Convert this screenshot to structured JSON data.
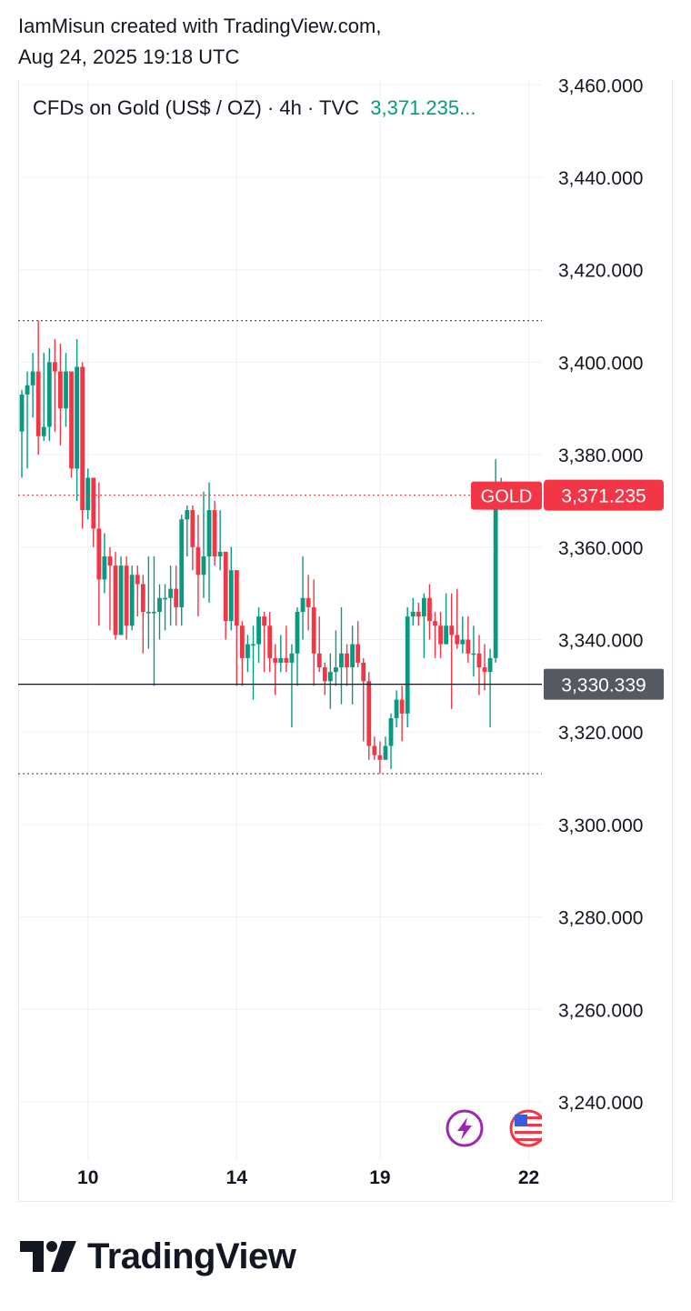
{
  "header": {
    "line1": "IamMisun created with TradingView.com,",
    "line2": "Aug 24, 2025 19:18 UTC"
  },
  "legend": {
    "symbol_text": "CFDs on Gold (US$ / OZ) · 4h · TVC",
    "last_price": "3,371.235..."
  },
  "colors": {
    "up": "#089981",
    "down": "#f23645",
    "grid": "#eef0f3",
    "text": "#131722",
    "crosshair_label": "#555a62"
  },
  "footer": {
    "brand": "TradingView"
  },
  "icons": [
    "lightning-icon",
    "us-flag-icon"
  ],
  "chart_data": {
    "type": "candlestick",
    "symbol": "CFDs on Gold (US$ / OZ)",
    "interval": "4h",
    "exchange": "TVC",
    "ylim": [
      3230,
      3462
    ],
    "y_ticks": [
      3240,
      3260,
      3280,
      3300,
      3320,
      3340,
      3360,
      3380,
      3400,
      3420,
      3440,
      3460
    ],
    "y_tick_labels": [
      "3,240.000",
      "3,260.000",
      "3,280.000",
      "3,300.000",
      "3,320.000",
      "3,340.000",
      "3,360.000",
      "3,380.000",
      "3,400.000",
      "3,420.000",
      "3,440.000",
      "3,460.000"
    ],
    "x_tick_labels": [
      "10",
      "14",
      "19",
      "22"
    ],
    "x_tick_bar_index": [
      12,
      39,
      65,
      92
    ],
    "last_price": 3371.235,
    "last_price_label": "3,371.235",
    "symbol_badge": "GOLD",
    "crosshair_price": 3330.339,
    "crosshair_label": "3,330.339",
    "range_high": 3409,
    "range_low": 3311,
    "grid": true,
    "candles": [
      [
        3385,
        3394,
        3375,
        3393
      ],
      [
        3393,
        3398,
        3377,
        3395
      ],
      [
        3395,
        3402,
        3388,
        3398
      ],
      [
        3398,
        3409,
        3380,
        3384
      ],
      [
        3384,
        3402,
        3383,
        3386
      ],
      [
        3386,
        3403,
        3383,
        3400
      ],
      [
        3400,
        3405,
        3385,
        3398
      ],
      [
        3398,
        3404,
        3382,
        3390
      ],
      [
        3390,
        3402,
        3386,
        3398
      ],
      [
        3398,
        3398,
        3375,
        3377
      ],
      [
        3377,
        3405,
        3370,
        3399
      ],
      [
        3399,
        3400,
        3364,
        3368
      ],
      [
        3368,
        3377,
        3366,
        3375
      ],
      [
        3375,
        3375,
        3360,
        3364
      ],
      [
        3364,
        3374,
        3343,
        3353
      ],
      [
        3353,
        3363,
        3350,
        3358
      ],
      [
        3358,
        3360,
        3342,
        3356
      ],
      [
        3356,
        3359,
        3340,
        3341
      ],
      [
        3341,
        3358,
        3341,
        3356
      ],
      [
        3356,
        3358,
        3340,
        3343
      ],
      [
        3343,
        3356,
        3342,
        3354
      ],
      [
        3354,
        3356,
        3345,
        3352
      ],
      [
        3352,
        3354,
        3337,
        3346
      ],
      [
        3346,
        3358,
        3338,
        3346
      ],
      [
        3346,
        3358,
        3330,
        3346
      ],
      [
        3346,
        3352,
        3340,
        3349
      ],
      [
        3349,
        3352,
        3342,
        3349
      ],
      [
        3349,
        3356,
        3343,
        3351
      ],
      [
        3351,
        3356,
        3343,
        3347
      ],
      [
        3347,
        3367,
        3343,
        3366
      ],
      [
        3366,
        3369,
        3358,
        3368
      ],
      [
        3368,
        3369,
        3355,
        3360
      ],
      [
        3360,
        3367,
        3345,
        3354
      ],
      [
        3354,
        3372,
        3349,
        3358
      ],
      [
        3358,
        3374,
        3348,
        3368
      ],
      [
        3368,
        3370,
        3356,
        3358
      ],
      [
        3358,
        3368,
        3355,
        3359
      ],
      [
        3359,
        3359,
        3340,
        3344
      ],
      [
        3344,
        3360,
        3342,
        3355
      ],
      [
        3355,
        3355,
        3330,
        3343
      ],
      [
        3343,
        3344,
        3330,
        3336
      ],
      [
        3336,
        3341,
        3333,
        3339
      ],
      [
        3339,
        3343,
        3327,
        3339
      ],
      [
        3339,
        3347,
        3335,
        3345
      ],
      [
        3345,
        3346,
        3333,
        3343
      ],
      [
        3343,
        3346,
        3333,
        3336
      ],
      [
        3336,
        3339,
        3328,
        3335
      ],
      [
        3335,
        3341,
        3333,
        3336
      ],
      [
        3336,
        3343,
        3333,
        3335
      ],
      [
        3335,
        3339,
        3321,
        3337
      ],
      [
        3337,
        3347,
        3330,
        3346
      ],
      [
        3346,
        3358,
        3340,
        3349
      ],
      [
        3349,
        3354,
        3342,
        3347
      ],
      [
        3347,
        3353,
        3330,
        3337
      ],
      [
        3337,
        3345,
        3333,
        3334
      ],
      [
        3334,
        3335,
        3328,
        3331
      ],
      [
        3331,
        3337,
        3325,
        3333
      ],
      [
        3333,
        3342,
        3330,
        3334
      ],
      [
        3334,
        3347,
        3326,
        3337
      ],
      [
        3337,
        3339,
        3330,
        3334
      ],
      [
        3334,
        3343,
        3326,
        3339
      ],
      [
        3339,
        3344,
        3334,
        3335
      ],
      [
        3335,
        3336,
        3318,
        3331
      ],
      [
        3331,
        3333,
        3314,
        3317
      ],
      [
        3317,
        3319,
        3314,
        3315
      ],
      [
        3315,
        3318,
        3311,
        3314
      ],
      [
        3314,
        3319,
        3314,
        3317
      ],
      [
        3317,
        3324,
        3312,
        3323
      ],
      [
        3323,
        3329,
        3321,
        3327
      ],
      [
        3327,
        3330,
        3318,
        3324
      ],
      [
        3324,
        3347,
        3321,
        3345
      ],
      [
        3345,
        3349,
        3343,
        3346
      ],
      [
        3346,
        3348,
        3343,
        3345
      ],
      [
        3345,
        3350,
        3336,
        3349
      ],
      [
        3349,
        3352,
        3340,
        3344
      ],
      [
        3344,
        3346,
        3336,
        3343
      ],
      [
        3343,
        3346,
        3336,
        3339
      ],
      [
        3339,
        3350,
        3339,
        3343
      ],
      [
        3343,
        3350,
        3325,
        3341
      ],
      [
        3341,
        3351,
        3338,
        3339
      ],
      [
        3339,
        3345,
        3337,
        3340
      ],
      [
        3340,
        3345,
        3335,
        3337
      ],
      [
        3337,
        3343,
        3332,
        3337
      ],
      [
        3337,
        3341,
        3328,
        3334
      ],
      [
        3334,
        3339,
        3329,
        3333
      ],
      [
        3333,
        3338,
        3321,
        3336
      ],
      [
        3336,
        3379,
        3335,
        3371
      ],
      [
        3371,
        3375,
        3368,
        3371
      ]
    ]
  }
}
